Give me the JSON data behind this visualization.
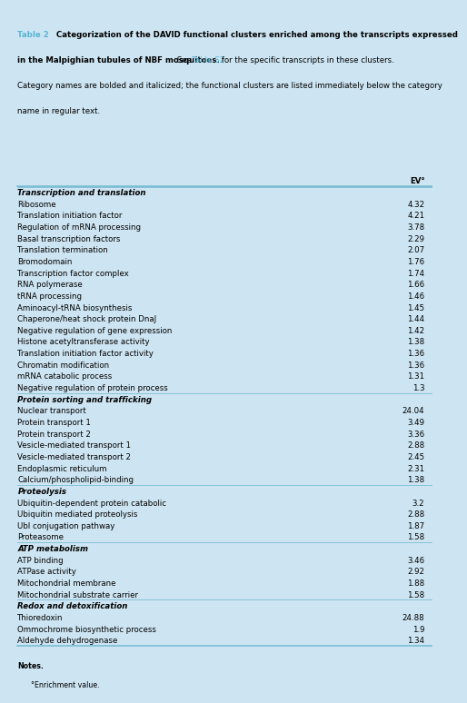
{
  "col_header": "EV°",
  "bg_color": "#cde5f2",
  "line_color": "#7bbdd4",
  "link_color": "#5ab4d6",
  "rows": [
    {
      "label": "Transcription and translation",
      "value": null,
      "is_category": true
    },
    {
      "label": "Ribosome",
      "value": "4.32",
      "is_category": false
    },
    {
      "label": "Translation initiation factor",
      "value": "4.21",
      "is_category": false
    },
    {
      "label": "Regulation of mRNA processing",
      "value": "3.78",
      "is_category": false
    },
    {
      "label": "Basal transcription factors",
      "value": "2.29",
      "is_category": false
    },
    {
      "label": "Translation termination",
      "value": "2.07",
      "is_category": false
    },
    {
      "label": "Bromodomain",
      "value": "1.76",
      "is_category": false
    },
    {
      "label": "Transcription factor complex",
      "value": "1.74",
      "is_category": false
    },
    {
      "label": "RNA polymerase",
      "value": "1.66",
      "is_category": false
    },
    {
      "label": "tRNA processing",
      "value": "1.46",
      "is_category": false
    },
    {
      "label": "Aminoacyl-tRNA biosynthesis",
      "value": "1.45",
      "is_category": false
    },
    {
      "label": "Chaperone/heat shock protein DnaJ",
      "value": "1.44",
      "is_category": false
    },
    {
      "label": "Negative regulation of gene expression",
      "value": "1.42",
      "is_category": false
    },
    {
      "label": "Histone acetyltransferase activity",
      "value": "1.38",
      "is_category": false
    },
    {
      "label": "Translation initiation factor activity",
      "value": "1.36",
      "is_category": false
    },
    {
      "label": "Chromatin modification",
      "value": "1.36",
      "is_category": false
    },
    {
      "label": "mRNA catabolic process",
      "value": "1.31",
      "is_category": false
    },
    {
      "label": "Negative regulation of protein process",
      "value": "1.3",
      "is_category": false
    },
    {
      "label": "Protein sorting and trafficking",
      "value": null,
      "is_category": true
    },
    {
      "label": "Nuclear transport",
      "value": "24.04",
      "is_category": false
    },
    {
      "label": "Protein transport 1",
      "value": "3.49",
      "is_category": false
    },
    {
      "label": "Protein transport 2",
      "value": "3.36",
      "is_category": false
    },
    {
      "label": "Vesicle-mediated transport 1",
      "value": "2.88",
      "is_category": false
    },
    {
      "label": "Vesicle-mediated transport 2",
      "value": "2.45",
      "is_category": false
    },
    {
      "label": "Endoplasmic reticulum",
      "value": "2.31",
      "is_category": false
    },
    {
      "label": "Calcium/phospholipid-binding",
      "value": "1.38",
      "is_category": false
    },
    {
      "label": "Proteolysis",
      "value": null,
      "is_category": true
    },
    {
      "label": "Ubiquitin-dependent protein catabolic",
      "value": "3.2",
      "is_category": false
    },
    {
      "label": "Ubiquitin mediated proteolysis",
      "value": "2.88",
      "is_category": false
    },
    {
      "label": "Ubl conjugation pathway",
      "value": "1.87",
      "is_category": false
    },
    {
      "label": "Proteasome",
      "value": "1.58",
      "is_category": false
    },
    {
      "label": "ATP metabolism",
      "value": null,
      "is_category": true
    },
    {
      "label": "ATP binding",
      "value": "3.46",
      "is_category": false
    },
    {
      "label": "ATPase activity",
      "value": "2.92",
      "is_category": false
    },
    {
      "label": "Mitochondrial membrane",
      "value": "1.88",
      "is_category": false
    },
    {
      "label": "Mitochondrial substrate carrier",
      "value": "1.58",
      "is_category": false
    },
    {
      "label": "Redox and detoxification",
      "value": null,
      "is_category": true
    },
    {
      "label": "Thioredoxin",
      "value": "24.88",
      "is_category": false
    },
    {
      "label": "Ommochrome biosynthetic process",
      "value": "1.9",
      "is_category": false
    },
    {
      "label": "Aldehyde dehydrogenase",
      "value": "1.34",
      "is_category": false
    }
  ],
  "title_line1_bold": "Table 2   Categorization of the DAVID functional clusters enriched among the transcripts expressed",
  "title_line2_bold": "in the Malpighian tubules of NBF mosquitoes.",
  "title_line2_normal": " for the specific transcripts in these clusters.",
  "title_line3": "Category names are bolded and italicized; the functional clusters are listed immediately below the category",
  "title_line4": "name in regular text.",
  "title_table2": "Table 2",
  "title_link": "Table S2",
  "notes_label": "Notes.",
  "notes_detail": "°Enrichment value."
}
